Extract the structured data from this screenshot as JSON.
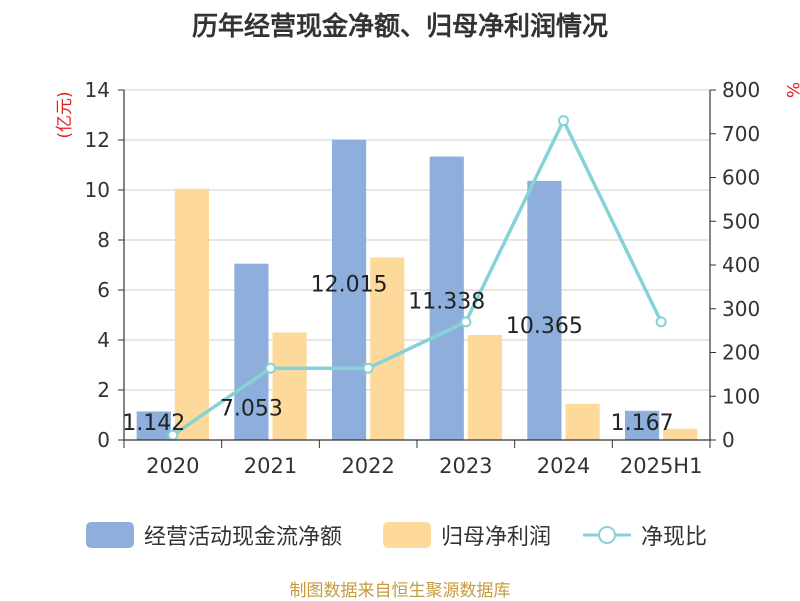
{
  "chart_data": {
    "type": "bar",
    "title": "历年经营现金净额、归母净利润情况",
    "categories": [
      "2020",
      "2021",
      "2022",
      "2023",
      "2024",
      "2025H1"
    ],
    "y_left": {
      "unit": "(亿元)",
      "ylim": [
        0,
        14
      ],
      "ticks": [
        "0",
        "2",
        "4",
        "6",
        "8",
        "10",
        "12",
        "14"
      ]
    },
    "y_right": {
      "unit": "%",
      "ylim": [
        0,
        800
      ],
      "ticks": [
        "0",
        "100",
        "200",
        "300",
        "400",
        "500",
        "600",
        "700",
        "800"
      ]
    },
    "series": [
      {
        "name": "经营活动现金流净额",
        "type": "bar",
        "axis": "left",
        "values": [
          1.142,
          7.053,
          12.015,
          11.338,
          10.365,
          1.167
        ],
        "labels": [
          "1.142",
          "7.053",
          "12.015",
          "11.338",
          "10.365",
          "1.167"
        ],
        "color": "#8eaedb"
      },
      {
        "name": "归母净利润",
        "type": "bar",
        "axis": "left",
        "values": [
          10.05,
          4.3,
          7.3,
          4.2,
          1.45,
          0.45
        ],
        "color": "#fdd99b"
      },
      {
        "name": "净现比",
        "type": "line",
        "axis": "right",
        "values": [
          11,
          164,
          164,
          270,
          730,
          270
        ],
        "color": "#85d3d6"
      }
    ],
    "grid": true,
    "legend_position": "bottom"
  },
  "source": "制图数据来自恒生聚源数据库"
}
